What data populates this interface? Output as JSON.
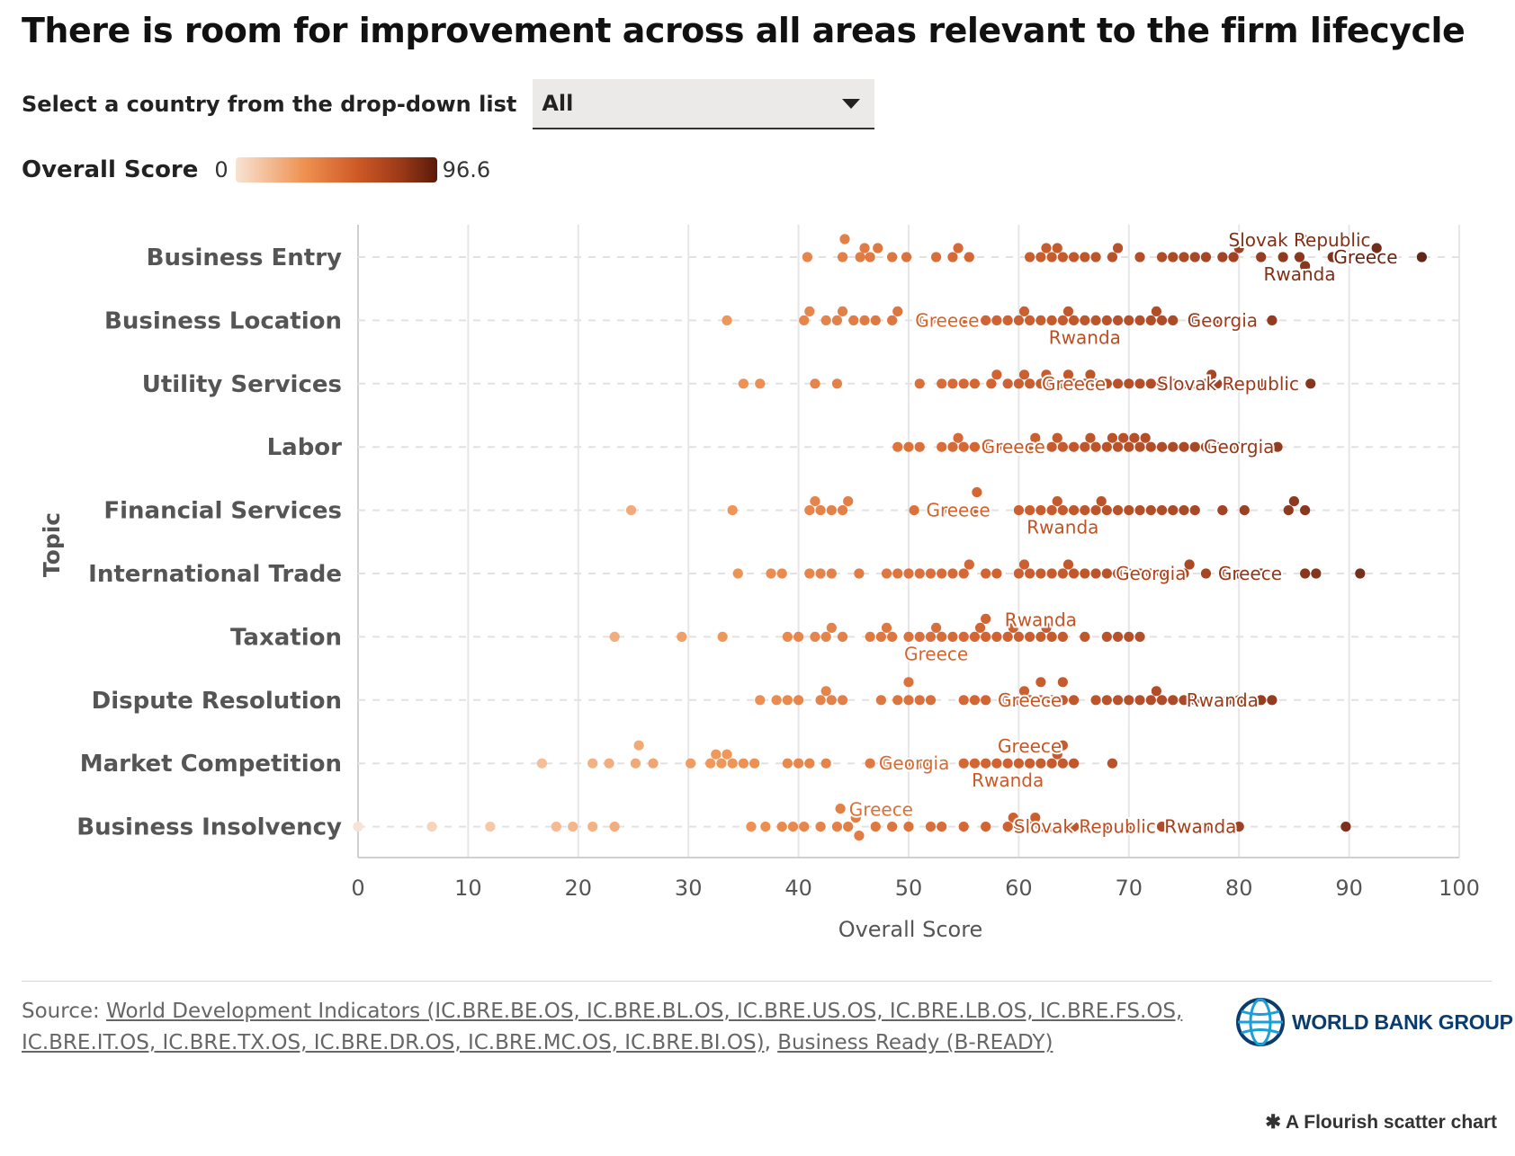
{
  "title": "There is room for improvement across all areas relevant to the firm lifecycle",
  "selector": {
    "label": "Select a country from the drop-down list",
    "value": "All"
  },
  "legend": {
    "title": "Overall Score",
    "min": "0",
    "max": "96.6"
  },
  "source": {
    "prefix": "Source: ",
    "link1": "World Development Indicators (IC.BRE.BE.OS, IC.BRE.BL.OS, IC.BRE.US.OS, IC.BRE.LB.OS, IC.BRE.FS.OS, IC.BRE.IT.OS, IC.BRE.TX.OS, IC.BRE.DR.OS, IC.BRE.MC.OS, IC.BRE.BI.OS)",
    "sep": ", ",
    "link2": "Business Ready (B-READY)"
  },
  "branding": {
    "wbg": "WORLD BANK GROUP",
    "flourish": "A Flourish scatter chart"
  },
  "colors": {
    "low": "#f8e3d4",
    "mid": "#ee8f4e",
    "high": "#5a1a0a",
    "grid": "#e6e6e6"
  },
  "chart_data": {
    "type": "scatter",
    "xlabel": "Overall Score",
    "ylabel": "Topic",
    "xlim": [
      0,
      100
    ],
    "xticks": [
      "0",
      "10",
      "20",
      "30",
      "40",
      "50",
      "60",
      "70",
      "80",
      "90",
      "100"
    ],
    "color_range": [
      0,
      96.6
    ],
    "grid": true,
    "categories": [
      "Business Entry",
      "Business Location",
      "Utility Services",
      "Labor",
      "Financial Services",
      "International Trade",
      "Taxation",
      "Dispute Resolution",
      "Market Competition",
      "Business Insolvency"
    ],
    "series": [
      {
        "topic": "Business Entry",
        "values": [
          40.8,
          44,
          45.6,
          48.5,
          44.2,
          46,
          47.2,
          46.5,
          49.8,
          52.5,
          54,
          54.5,
          55.5,
          61,
          62,
          63,
          64,
          65,
          66,
          62.5,
          63.5,
          67,
          69,
          71,
          73,
          75,
          77,
          78.5,
          80,
          82,
          84,
          85.5,
          85.8,
          86,
          88.5,
          91,
          92,
          92.5,
          96.6,
          74,
          76,
          79.5,
          68.5
        ],
        "labels": [
          {
            "name": "Slovak Republic",
            "x": 85.5,
            "pos": "above"
          },
          {
            "name": "Greece",
            "x": 91.5,
            "pos": "on"
          },
          {
            "name": "Rwanda",
            "x": 85.5,
            "pos": "below"
          }
        ]
      },
      {
        "topic": "Business Location",
        "values": [
          33.5,
          40.5,
          41,
          42.5,
          43.5,
          44,
          45,
          46,
          47,
          48.5,
          49,
          51,
          53,
          55,
          56,
          57,
          58,
          60,
          60.5,
          61,
          62,
          63,
          64,
          66,
          67,
          68,
          69,
          70,
          71,
          72,
          72.5,
          73,
          74,
          76,
          78,
          80.5,
          83,
          64.5,
          59,
          52,
          65
        ],
        "labels": [
          {
            "name": "Greece",
            "x": 53.5,
            "pos": "on"
          },
          {
            "name": "Rwanda",
            "x": 66,
            "pos": "below"
          },
          {
            "name": "Georgia",
            "x": 78.5,
            "pos": "on"
          }
        ]
      },
      {
        "topic": "Utility Services",
        "values": [
          35,
          36.5,
          41.5,
          43.5,
          51,
          53,
          54,
          55,
          56,
          58,
          59,
          60,
          61,
          62,
          63,
          64,
          65,
          66,
          67,
          68,
          69,
          70,
          71,
          72,
          73,
          74,
          75,
          76,
          77,
          78,
          79,
          82,
          86.5,
          60.5,
          62.5,
          64.5,
          57.5,
          66.5,
          77.5
        ],
        "labels": [
          {
            "name": "Greece",
            "x": 65,
            "pos": "on"
          },
          {
            "name": "Slovak Republic",
            "x": 79,
            "pos": "on"
          }
        ]
      },
      {
        "topic": "Labor",
        "values": [
          49,
          50,
          51,
          53,
          54,
          55,
          56,
          57,
          58,
          59,
          60,
          61,
          62,
          63,
          64,
          65,
          66,
          67,
          68,
          68.5,
          69,
          69.5,
          70,
          71,
          72,
          73,
          74,
          75,
          76,
          77,
          78,
          80,
          83.5,
          54.5,
          61.5,
          63.5,
          66.5,
          71.5,
          70.5
        ],
        "labels": [
          {
            "name": "Greece",
            "x": 59.5,
            "pos": "on"
          },
          {
            "name": "Georgia",
            "x": 80,
            "pos": "on"
          }
        ]
      },
      {
        "topic": "Financial Services",
        "values": [
          24.8,
          34,
          41,
          42,
          43,
          44,
          44.5,
          50.5,
          53,
          55,
          56,
          57,
          60,
          61,
          62,
          63,
          64,
          65,
          66,
          67,
          68,
          69,
          70,
          71,
          72,
          73,
          75,
          76,
          78.5,
          80.5,
          84.5,
          86,
          85,
          56.2,
          63.5,
          67.5,
          74,
          41.5
        ],
        "labels": [
          {
            "name": "Greece",
            "x": 54.5,
            "pos": "on"
          },
          {
            "name": "Rwanda",
            "x": 64,
            "pos": "below"
          }
        ]
      },
      {
        "topic": "International Trade",
        "values": [
          34.5,
          37.5,
          38.5,
          41,
          42,
          43,
          45.5,
          48,
          49,
          50,
          51,
          53,
          54,
          55,
          57,
          58,
          60,
          61,
          62,
          63,
          64,
          65,
          66,
          67,
          68,
          69,
          70,
          71,
          72,
          73,
          74,
          75,
          77,
          78.5,
          80,
          82,
          86,
          87,
          91,
          60.5,
          64.5,
          75.5,
          55.5,
          52
        ],
        "labels": [
          {
            "name": "Georgia",
            "x": 72,
            "pos": "on"
          },
          {
            "name": "Greece",
            "x": 81,
            "pos": "on"
          }
        ]
      },
      {
        "topic": "Taxation",
        "values": [
          23.3,
          29.4,
          33.1,
          39,
          40,
          41.5,
          42.5,
          43,
          44,
          46.5,
          47.5,
          48.5,
          50,
          51,
          52,
          53,
          54,
          55,
          56,
          57,
          58,
          59,
          60,
          61,
          62,
          63,
          64,
          66,
          68,
          69,
          70,
          71,
          56.5,
          57,
          59.5,
          48,
          52.5,
          62.5
        ],
        "labels": [
          {
            "name": "Rwanda",
            "x": 62,
            "pos": "above"
          },
          {
            "name": "Greece",
            "x": 52.5,
            "pos": "below"
          }
        ]
      },
      {
        "topic": "Dispute Resolution",
        "values": [
          36.5,
          38,
          39,
          40,
          42,
          43,
          44,
          47.5,
          49,
          50,
          51,
          52,
          55,
          56,
          57,
          59,
          60,
          61,
          62,
          63,
          64,
          65,
          67,
          68,
          69,
          70,
          71,
          72,
          73,
          74,
          75,
          76,
          77,
          79,
          80,
          82,
          83,
          60.5,
          62,
          64,
          42.5,
          50,
          72.5
        ],
        "labels": [
          {
            "name": "Greece",
            "x": 61,
            "pos": "on"
          },
          {
            "name": "Rwanda",
            "x": 78.5,
            "pos": "on"
          }
        ]
      },
      {
        "topic": "Market Competition",
        "values": [
          16.7,
          21.3,
          22.8,
          25.2,
          26.8,
          30.2,
          32,
          33,
          34,
          35,
          36,
          39,
          40,
          41,
          42.5,
          46.5,
          48,
          50,
          51,
          52,
          53,
          55,
          56,
          57,
          58,
          59,
          60,
          61,
          62,
          63,
          64,
          65,
          68.5,
          25.5,
          32.5,
          33.5,
          63.5,
          64
        ],
        "labels": [
          {
            "name": "Georgia",
            "x": 50.5,
            "pos": "on"
          },
          {
            "name": "Greece",
            "x": 61,
            "pos": "above"
          },
          {
            "name": "Rwanda",
            "x": 59,
            "pos": "below"
          }
        ]
      },
      {
        "topic": "Business Insolvency",
        "values": [
          0,
          6.7,
          12,
          18,
          19.5,
          21.3,
          23.3,
          35.7,
          37,
          38.5,
          39.5,
          40.5,
          42,
          43.5,
          44.5,
          45.5,
          47,
          48.5,
          50,
          52,
          53,
          55,
          57,
          59,
          60,
          61,
          62,
          63,
          65,
          66,
          68,
          70,
          71,
          73,
          75,
          77,
          79,
          80,
          89.7,
          43.8,
          45.2,
          61.5,
          59.5
        ],
        "labels": [
          {
            "name": "Greece",
            "x": 47.5,
            "pos": "above"
          },
          {
            "name": "Slovak Republic",
            "x": 66,
            "pos": "on"
          },
          {
            "name": "Rwanda",
            "x": 76.5,
            "pos": "on"
          }
        ]
      }
    ]
  }
}
